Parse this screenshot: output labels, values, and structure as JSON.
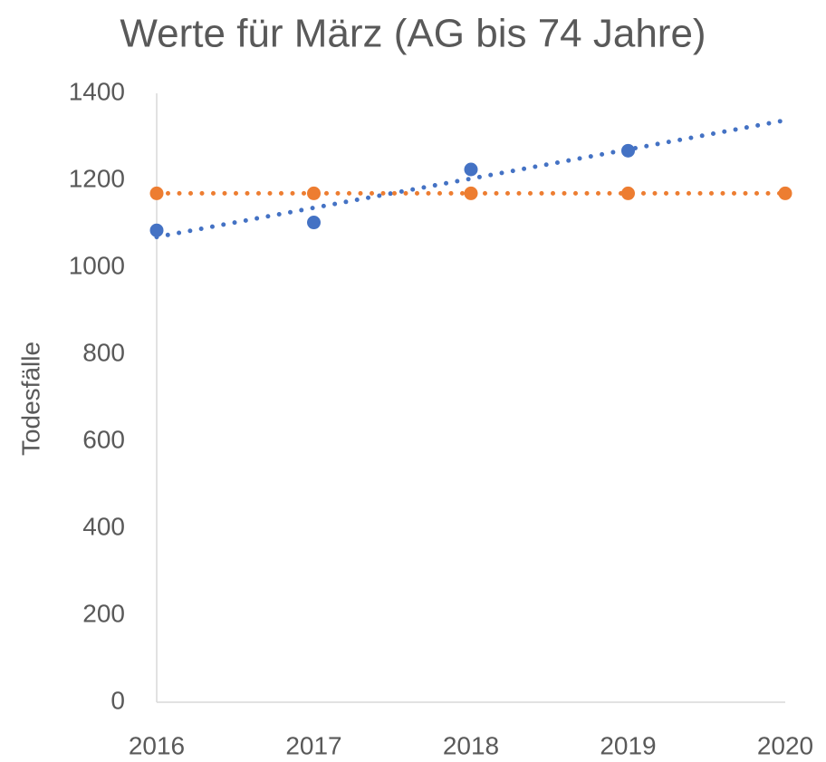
{
  "chart_data": {
    "type": "scatter",
    "title": "Werte für März (AG bis 74 Jahre)",
    "y_label": "Todesfälle",
    "trendline": "linear",
    "series": [
      {
        "color": "#4472c4",
        "x": [
          2016,
          2017,
          2018,
          2019
        ],
        "values": [
          1085,
          1103,
          1225,
          1268
        ]
      },
      {
        "color": "#ed7d31",
        "x": [
          2016,
          2017,
          2018,
          2019,
          2020
        ],
        "values": [
          1170,
          1170,
          1170,
          1170,
          1170
        ]
      }
    ],
    "xlim": [
      2016,
      2020
    ],
    "xticks": [
      2016,
      2017,
      2018,
      2019,
      2020
    ],
    "ylim": [
      0,
      1400
    ],
    "yticks": [
      0,
      200,
      400,
      600,
      800,
      1000,
      1200,
      1400
    ],
    "grid": false
  }
}
